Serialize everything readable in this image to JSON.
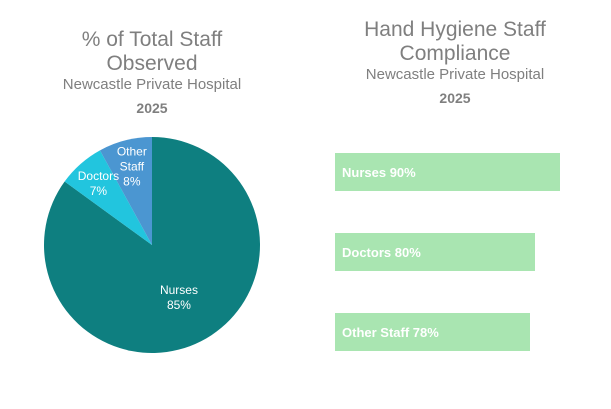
{
  "chart_data": [
    {
      "type": "pie",
      "title": "% of Total Staff Observed",
      "subtitle": "Newcastle Private Hospital",
      "year": "2025",
      "categories": [
        "Nurses",
        "Doctors",
        "Other Staff"
      ],
      "values": [
        85,
        7,
        8
      ],
      "value_labels": [
        "85%",
        "7%",
        "8%"
      ],
      "colors": [
        "#0e7f80",
        "#22c5de",
        "#4b96d1"
      ]
    },
    {
      "type": "hbar",
      "title": "Hand Hygiene Staff Compliance",
      "subtitle": "Newcastle Private Hospital",
      "year": "2025",
      "categories": [
        "Nurses",
        "Doctors",
        "Other Staff"
      ],
      "values": [
        90,
        80,
        78
      ],
      "value_labels": [
        "90%",
        "80%",
        "78%"
      ],
      "color": "#a9e5b1",
      "xlim": [
        0,
        100
      ]
    }
  ]
}
